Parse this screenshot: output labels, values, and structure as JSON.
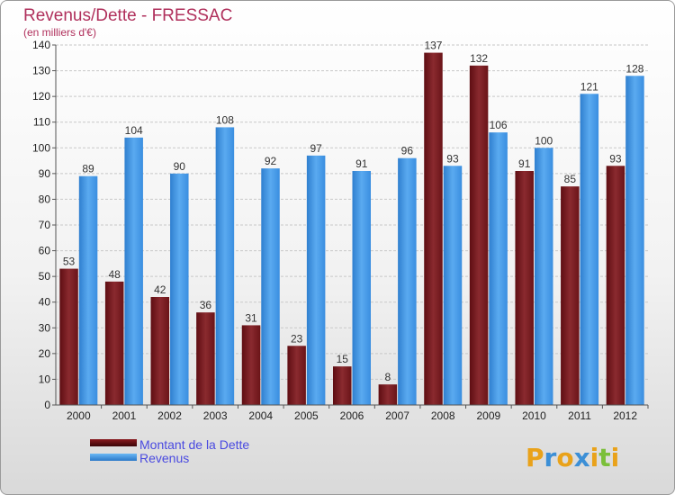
{
  "chart_data": {
    "type": "bar",
    "title": "Revenus/Dette - FRESSAC",
    "subtitle": "(en milliers d'€)",
    "categories": [
      "2000",
      "2001",
      "2002",
      "2003",
      "2004",
      "2005",
      "2006",
      "2007",
      "2008",
      "2009",
      "2010",
      "2011",
      "2012"
    ],
    "series": [
      {
        "name": "Montant de la Dette",
        "color": "#7a1a1f",
        "values": [
          53,
          48,
          42,
          36,
          31,
          23,
          15,
          8,
          137,
          132,
          91,
          85,
          93
        ]
      },
      {
        "name": "Revenus",
        "color": "#3d8fdb",
        "values": [
          89,
          104,
          90,
          108,
          92,
          97,
          91,
          96,
          93,
          106,
          100,
          121,
          128
        ]
      }
    ],
    "ylim": [
      0,
      140
    ],
    "yticks": [
      0,
      10,
      20,
      30,
      40,
      50,
      60,
      70,
      80,
      90,
      100,
      110,
      120,
      130,
      140
    ],
    "grid": true,
    "legend": "bottom-left"
  },
  "logo": {
    "text": "Proxiti"
  }
}
